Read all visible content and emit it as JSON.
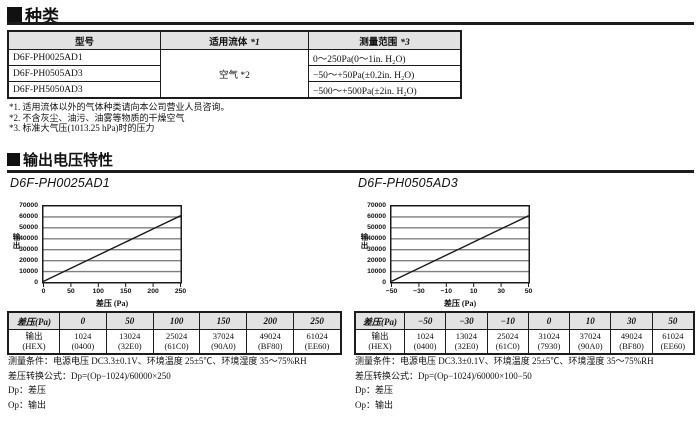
{
  "sections": {
    "types_title": "种类",
    "output_title": "输出电压特性"
  },
  "type_table": {
    "headers": {
      "model": "型号",
      "fluid": "适用流体",
      "fluid_note": "*1",
      "range": "测量范围",
      "range_note": "*3"
    },
    "fluid_value": "空气 *2",
    "rows": [
      {
        "model": "D6F-PH0025AD1",
        "range": "0～250Pa(0～1in. H₂O)"
      },
      {
        "model": "D6F-PH0505AD3",
        "range": "−50～+50Pa(±0.2in. H₂O)"
      },
      {
        "model": "D6F-PH5050AD3",
        "range": "−500～+500Pa(±2in. H₂O)"
      }
    ],
    "notes": [
      "*1. 适用流体以外的气体种类请向本公司营业人员咨询。",
      "*2. 不含灰尘、油污、油雾等物质的干燥空气",
      "*3. 标准大气压(1013.25 hPa)时的压力"
    ]
  },
  "chart_data": [
    {
      "type": "line",
      "title": "D6F-PH0025AD1",
      "xlabel": "差压 (Pa)",
      "ylabel": "输出",
      "x": [
        0,
        50,
        100,
        150,
        200,
        250
      ],
      "values": [
        1024,
        13024,
        25024,
        37024,
        49024,
        61024
      ],
      "xlim": [
        0,
        250
      ],
      "ylim": [
        0,
        70000
      ],
      "xticks": [
        0,
        50,
        100,
        150,
        200,
        250
      ],
      "yticks": [
        0,
        10000,
        20000,
        30000,
        40000,
        50000,
        60000,
        70000
      ],
      "grid": true,
      "legend": false
    },
    {
      "type": "line",
      "title": "D6F-PH0505AD3",
      "xlabel": "差压 (Pa)",
      "ylabel": "输出",
      "x": [
        -50,
        -30,
        -10,
        0,
        10,
        30,
        50
      ],
      "values": [
        1024,
        13024,
        25024,
        31024,
        37024,
        49024,
        61024
      ],
      "xlim": [
        -50,
        50
      ],
      "ylim": [
        0,
        70000
      ],
      "xticks": [
        -50,
        -30,
        -10,
        10,
        30,
        50
      ],
      "yticks": [
        0,
        10000,
        20000,
        30000,
        40000,
        50000,
        60000,
        70000
      ],
      "grid": true,
      "legend": false
    }
  ],
  "output_tables": [
    {
      "corner": "差压(Pa)",
      "row_label_1": "输出",
      "row_label_2": "(HEX)",
      "columns": [
        "0",
        "50",
        "100",
        "150",
        "200",
        "250"
      ],
      "values": [
        "1024",
        "13024",
        "25024",
        "37024",
        "49024",
        "61024"
      ],
      "hex": [
        "(0400)",
        "(32E0)",
        "(61C0)",
        "(90A0)",
        "(BF80)",
        "(EE60)"
      ],
      "conditions": "测量条件：电源电压 DC3.3±0.1V、环境温度 25±5℃、环境湿度 35～75%RH",
      "formula": "差压转换公式：Dp=(Op−1024)/60000×250",
      "dp_def": "Dp：差压",
      "op_def": "Op：输出"
    },
    {
      "corner": "差压(Pa)",
      "row_label_1": "输出",
      "row_label_2": "(HEX)",
      "columns": [
        "−50",
        "−30",
        "−10",
        "0",
        "10",
        "30",
        "50"
      ],
      "values": [
        "1024",
        "13024",
        "25024",
        "31024",
        "37024",
        "49024",
        "61024"
      ],
      "hex": [
        "(0400)",
        "(32E0)",
        "(61C0)",
        "(7930)",
        "(90A0)",
        "(BF80)",
        "(EE60)"
      ],
      "conditions": "测量条件：电源电压 DC3.3±0.1V、环境温度 25±5℃、环境湿度 35～75%RH",
      "formula": "差压转换公式：Dp=(Op−1024)/60000×100−50",
      "dp_def": "Dp：差压",
      "op_def": "Op：输出"
    }
  ],
  "colors": {
    "header_fill": "#e2e2e2",
    "gridline": "#7f7f7f",
    "line": "#1a1a1a",
    "border": "#1c1c1c"
  }
}
